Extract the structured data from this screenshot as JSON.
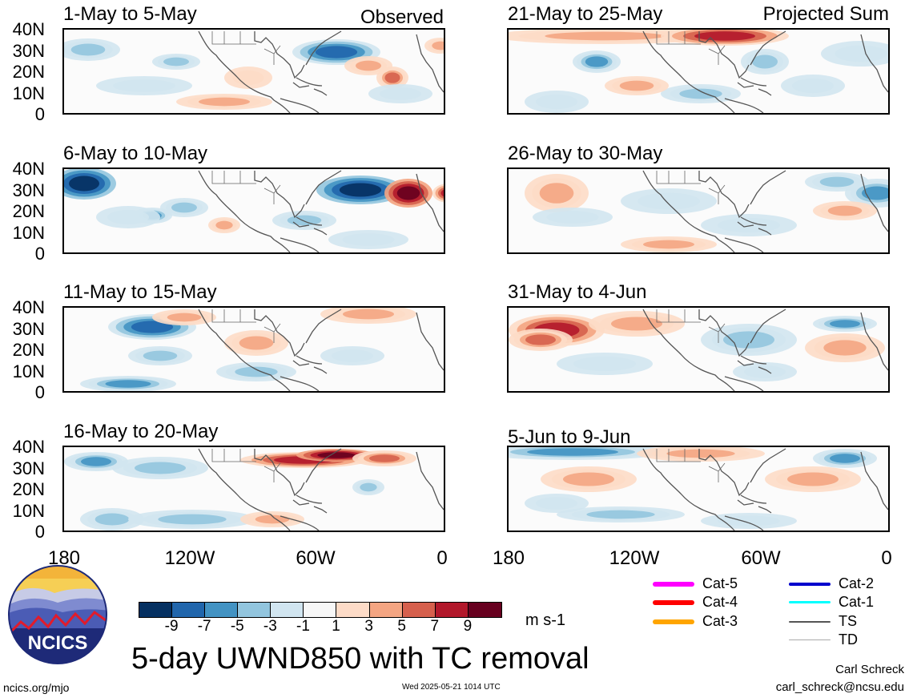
{
  "panels": [
    {
      "title": "1-May to 5-May",
      "corner": "Observed"
    },
    {
      "title": "6-May to 10-May",
      "corner": ""
    },
    {
      "title": "11-May to 15-May",
      "corner": ""
    },
    {
      "title": "16-May to 20-May",
      "corner": ""
    },
    {
      "title": "21-May to 25-May",
      "corner": "Projected Sum"
    },
    {
      "title": "26-May to 30-May",
      "corner": ""
    },
    {
      "title": "31-May to 4-Jun",
      "corner": ""
    },
    {
      "title": "5-Jun to 9-Jun",
      "corner": ""
    }
  ],
  "lat_labels": [
    "40N",
    "30N",
    "20N",
    "10N",
    "0"
  ],
  "lon_labels": [
    "180",
    "120W",
    "60W",
    "0"
  ],
  "colorbar": {
    "colors": [
      "#053061",
      "#2166ac",
      "#4393c3",
      "#92c5de",
      "#d1e5f0",
      "#f7f7f7",
      "#fddbc7",
      "#f4a582",
      "#d6604d",
      "#b2182b",
      "#67001f"
    ],
    "ticks": [
      "-9",
      "-7",
      "-5",
      "-3",
      "-1",
      "1",
      "3",
      "5",
      "7",
      "9"
    ],
    "units": "m s-1"
  },
  "title": "5-day UWND850 with TC removal",
  "legend": [
    {
      "label": "Cat-5",
      "color": "#ff00ff"
    },
    {
      "label": "Cat-4",
      "color": "#ff0000"
    },
    {
      "label": "Cat-3",
      "color": "#ffa500"
    },
    {
      "label": "Cat-2",
      "color": "#0000cd"
    },
    {
      "label": "Cat-1",
      "color": "#00ffff"
    },
    {
      "label": "TS",
      "color": "#555555"
    },
    {
      "label": "TD",
      "color": "#aaaaaa"
    }
  ],
  "logo_text": "NCICS",
  "website": "ncics.org/mjo",
  "timestamp": "Wed 2025-05-21 1014 UTC",
  "author": "Carl Schreck",
  "email": "carl_schreck@ncsu.edu"
}
